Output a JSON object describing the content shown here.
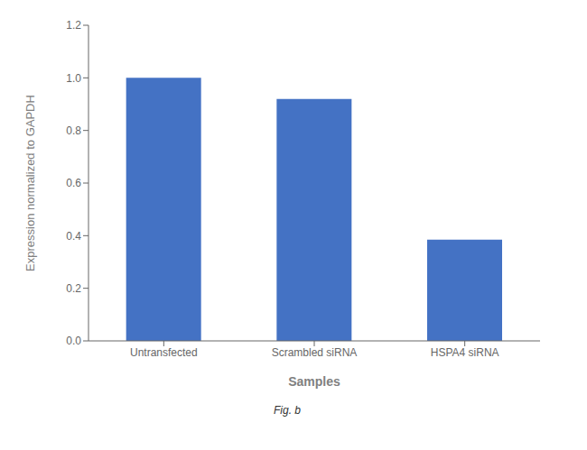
{
  "chart_data": {
    "type": "bar",
    "categories": [
      "Untransfected",
      "Scrambled siRNA",
      "HSPA4 siRNA"
    ],
    "values": [
      1.0,
      0.92,
      0.385
    ],
    "color": "#4472c4",
    "xlabel": "Samples",
    "ylabel": "Expression normalized to GAPDH",
    "ylim": [
      0,
      1.2
    ],
    "yticks": [
      {
        "value": 0,
        "label": "0.0"
      },
      0.2,
      0.4,
      0.6,
      0.8,
      {
        "value": 1,
        "label": "1.0"
      },
      1.2
    ],
    "grid": false,
    "annotations": [
      "Fig. b"
    ]
  }
}
